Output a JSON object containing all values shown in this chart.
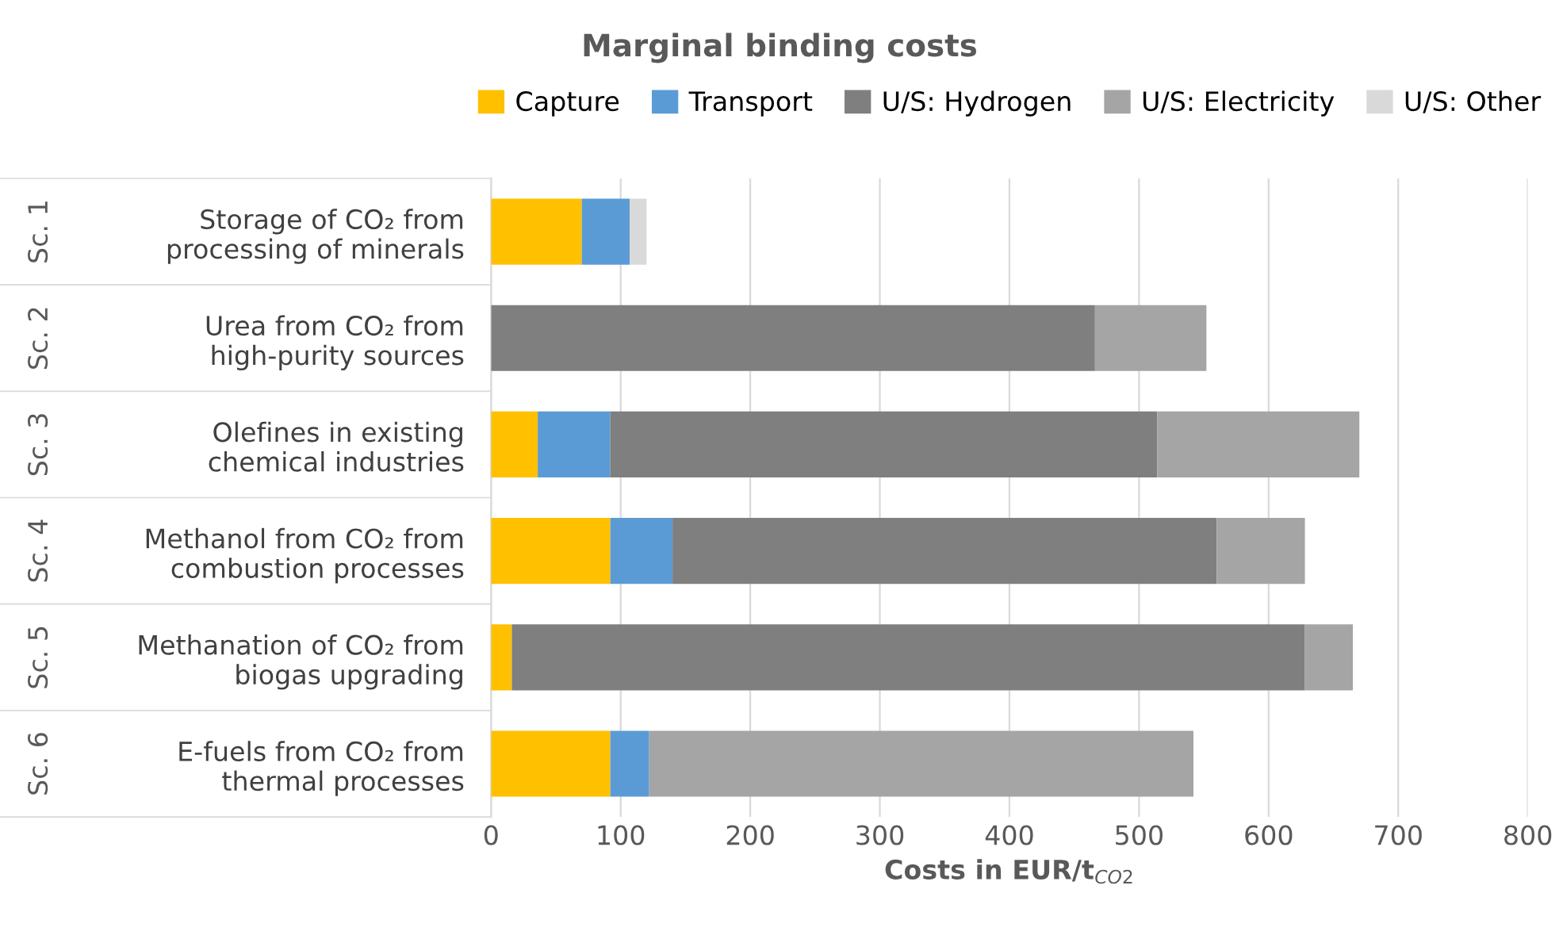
{
  "chart_data": {
    "type": "bar",
    "orientation": "horizontal",
    "stacked": true,
    "title": "Marginal binding costs",
    "categories": [
      "Storage of CO₂ from\nprocessing of minerals",
      "Urea from CO₂ from\nhigh-purity sources",
      "Olefines in existing\nchemical industries",
      "Methanol from CO₂ from\ncombustion processes",
      "Methanation of CO₂ from\nbiogas upgrading",
      "E-fuels from CO₂ from\nthermal processes"
    ],
    "series": [
      {
        "name": "Capture",
        "color": "#ffc000",
        "values": [
          70,
          null,
          36,
          92,
          16,
          92
        ]
      },
      {
        "name": "Transport",
        "color": "#5b9bd5",
        "values": [
          37,
          null,
          56,
          48,
          null,
          30
        ]
      },
      {
        "name": "U/S: Hydrogen",
        "color": "#7f7f7f",
        "values": [
          null,
          466,
          422,
          420,
          612,
          null
        ]
      },
      {
        "name": "U/S: Electricity",
        "color": "#a5a5a5",
        "values": [
          null,
          86,
          156,
          68,
          37,
          420
        ]
      },
      {
        "name": "U/S: Other",
        "color": "#d9d9d9",
        "values": [
          13,
          null,
          null,
          null,
          null,
          null
        ]
      }
    ],
    "annotations": [
      "Sc. 1",
      "Sc. 2",
      "Sc. 3",
      "Sc. 4",
      "Sc. 5",
      "Sc. 6"
    ],
    "xlabel": "Costs in EUR/t$_{CO2}$",
    "xlim": [
      0,
      800
    ],
    "xticks": [
      0,
      100,
      200,
      300,
      400,
      500,
      600,
      700,
      800
    ],
    "grid": "x",
    "legend": "top"
  }
}
